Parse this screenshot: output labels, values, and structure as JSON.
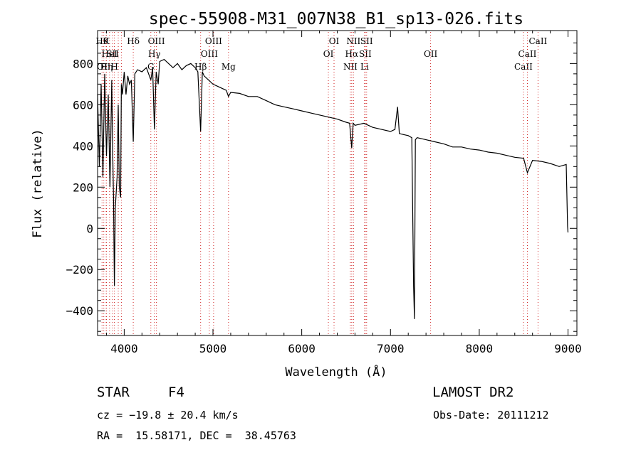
{
  "chart_data": {
    "type": "line",
    "title": "spec-55908-M31_007N38_B1_sp13-026.fits",
    "xlabel": "Wavelength (Å)",
    "ylabel": "Flux (relative)",
    "xlim": [
      3700,
      9100
    ],
    "ylim": [
      -520,
      960
    ],
    "xticks": [
      4000,
      5000,
      6000,
      7000,
      8000,
      9000
    ],
    "yticks": [
      -400,
      -200,
      0,
      200,
      400,
      600,
      800
    ],
    "grid": false,
    "line_color": "#000000",
    "marker_color": "#d02020",
    "series": [
      {
        "x": [
          3700,
          3720,
          3740,
          3760,
          3780,
          3800,
          3820,
          3840,
          3860,
          3870,
          3880,
          3889,
          3900,
          3920,
          3933,
          3945,
          3960,
          3968,
          3980,
          4000,
          4020,
          4040,
          4060,
          4080,
          4102,
          4120,
          4150,
          4200,
          4250,
          4300,
          4320,
          4340,
          4360,
          4383,
          4400,
          4450,
          4500,
          4550,
          4600,
          4650,
          4700,
          4750,
          4800,
          4830,
          4861,
          4880,
          4900,
          4950,
          5000,
          5050,
          5100,
          5150,
          5175,
          5200,
          5300,
          5400,
          5500,
          5600,
          5700,
          5800,
          5900,
          6000,
          6100,
          6200,
          6300,
          6400,
          6500,
          6540,
          6563,
          6580,
          6600,
          6700,
          6800,
          6900,
          7000,
          7050,
          7080,
          7100,
          7150,
          7200,
          7240,
          7260,
          7270,
          7280,
          7300,
          7400,
          7500,
          7600,
          7700,
          7800,
          7900,
          8000,
          8100,
          8200,
          8300,
          8400,
          8500,
          8542,
          8600,
          8700,
          8800,
          8900,
          8980,
          8995,
          9000
        ],
        "y": [
          650,
          300,
          700,
          250,
          750,
          350,
          650,
          200,
          720,
          380,
          150,
          -280,
          100,
          250,
          600,
          200,
          150,
          700,
          650,
          760,
          650,
          740,
          700,
          720,
          420,
          750,
          770,
          760,
          780,
          720,
          780,
          480,
          760,
          700,
          810,
          820,
          800,
          780,
          800,
          770,
          790,
          800,
          780,
          760,
          470,
          760,
          740,
          720,
          700,
          690,
          680,
          670,
          640,
          660,
          655,
          640,
          640,
          620,
          600,
          590,
          580,
          570,
          560,
          550,
          540,
          530,
          515,
          510,
          390,
          510,
          500,
          510,
          490,
          480,
          470,
          480,
          590,
          460,
          455,
          450,
          440,
          -280,
          -440,
          430,
          440,
          430,
          420,
          410,
          395,
          395,
          385,
          380,
          370,
          365,
          355,
          345,
          340,
          270,
          330,
          325,
          315,
          300,
          310,
          10,
          -20
        ]
      }
    ],
    "line_marks": [
      {
        "x": 3750,
        "labels": [
          "Hθ"
        ],
        "row": [
          1
        ]
      },
      {
        "x": 3770,
        "labels": [
          "OII"
        ],
        "row": [
          3
        ]
      },
      {
        "x": 3797,
        "labels": [
          "K"
        ],
        "row": [
          1
        ]
      },
      {
        "x": 3800,
        "labels": [
          "Hη"
        ],
        "row": [
          3
        ]
      },
      {
        "x": 3835,
        "labels": [
          "HeI"
        ],
        "row": [
          2
        ]
      },
      {
        "x": 3870,
        "labels": [
          "SII"
        ],
        "row": [
          2
        ]
      },
      {
        "x": 3889,
        "labels": [
          "H"
        ],
        "row": [
          3
        ]
      },
      {
        "x": 3933,
        "labels": [],
        "row": []
      },
      {
        "x": 3968,
        "labels": [],
        "row": []
      },
      {
        "x": 4102,
        "labels": [
          "Hδ"
        ],
        "row": [
          1
        ]
      },
      {
        "x": 4300,
        "labels": [
          "G"
        ],
        "row": [
          3
        ]
      },
      {
        "x": 4340,
        "labels": [
          "Hγ"
        ],
        "row": [
          2
        ]
      },
      {
        "x": 4363,
        "labels": [
          "OIII"
        ],
        "row": [
          1
        ]
      },
      {
        "x": 4861,
        "labels": [
          "Hβ"
        ],
        "row": [
          3
        ]
      },
      {
        "x": 4959,
        "labels": [
          "OIII"
        ],
        "row": [
          2
        ]
      },
      {
        "x": 5007,
        "labels": [
          "OIII"
        ],
        "row": [
          1
        ]
      },
      {
        "x": 5175,
        "labels": [
          "Mg"
        ],
        "row": [
          3
        ]
      },
      {
        "x": 6300,
        "labels": [
          "OI"
        ],
        "row": [
          2
        ]
      },
      {
        "x": 6364,
        "labels": [
          "OI"
        ],
        "row": [
          1
        ]
      },
      {
        "x": 6548,
        "labels": [
          "NII"
        ],
        "row": [
          3
        ]
      },
      {
        "x": 6563,
        "labels": [
          "Hα"
        ],
        "row": [
          2
        ]
      },
      {
        "x": 6583,
        "labels": [
          "NII"
        ],
        "row": [
          1
        ]
      },
      {
        "x": 6708,
        "labels": [
          "Li"
        ],
        "row": [
          3
        ]
      },
      {
        "x": 6716,
        "labels": [
          "SII"
        ],
        "row": [
          2
        ]
      },
      {
        "x": 6731,
        "labels": [
          "SII"
        ],
        "row": [
          1
        ]
      },
      {
        "x": 7452,
        "labels": [
          "OII"
        ],
        "row": [
          2
        ]
      },
      {
        "x": 8498,
        "labels": [
          "CaII"
        ],
        "row": [
          3
        ]
      },
      {
        "x": 8542,
        "labels": [
          "CaII"
        ],
        "row": [
          2
        ]
      },
      {
        "x": 8662,
        "labels": [
          "CaII"
        ],
        "row": [
          1
        ]
      }
    ]
  },
  "info": {
    "object_class": "STAR",
    "subclass": "F4",
    "survey": "LAMOST DR2",
    "redshift": "cz = −19.8 ± 20.4 km/s",
    "obs_date": "Obs-Date: 20111212",
    "coords": "RA =  15.58171, DEC =  38.45763"
  }
}
